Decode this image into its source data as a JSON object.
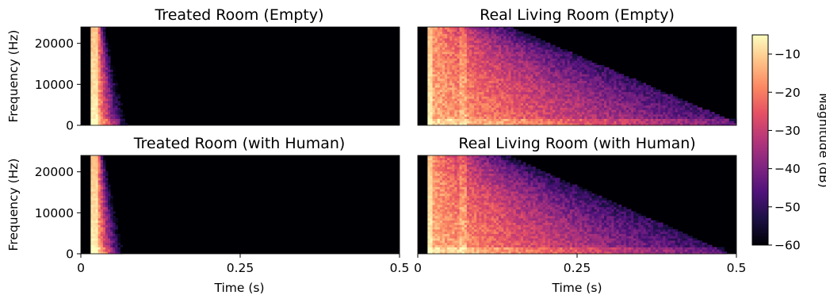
{
  "chart_data": [
    {
      "type": "heatmap",
      "title": "Treated Room (Empty)",
      "xlabel": "",
      "ylabel": "Frequency (Hz)",
      "xlim": [
        0,
        0.5
      ],
      "ylim": [
        0,
        24000
      ],
      "xticks": [],
      "yticks": [
        "0",
        "10000",
        "20000"
      ],
      "profile": {
        "onset_s": 0.015,
        "direct_width_s": 0.012,
        "decay_end_s": 0.06,
        "tail_level_db": -60,
        "noise_floor_db": -60,
        "second_reflection_s": 0.0
      }
    },
    {
      "type": "heatmap",
      "title": "Real Living Room (Empty)",
      "xlabel": "",
      "ylabel": "",
      "xlim": [
        0,
        0.5
      ],
      "ylim": [
        0,
        24000
      ],
      "xticks": [],
      "yticks": [],
      "profile": {
        "onset_s": 0.015,
        "direct_width_s": 0.01,
        "decay_end_s": 0.5,
        "tail_level_db": -48,
        "noise_floor_db": -60,
        "second_reflection_s": 0.055
      }
    },
    {
      "type": "heatmap",
      "title": "Treated Room (with Human)",
      "xlabel": "Time (s)",
      "ylabel": "Frequency (Hz)",
      "xlim": [
        0,
        0.5
      ],
      "ylim": [
        0,
        24000
      ],
      "xticks": [
        "0",
        "0.25",
        "0.5"
      ],
      "yticks": [
        "0",
        "10000",
        "20000"
      ],
      "profile": {
        "onset_s": 0.015,
        "direct_width_s": 0.012,
        "decay_end_s": 0.055,
        "tail_level_db": -60,
        "noise_floor_db": -60,
        "second_reflection_s": 0.0
      }
    },
    {
      "type": "heatmap",
      "title": "Real Living Room (with Human)",
      "xlabel": "Time (s)",
      "ylabel": "",
      "xlim": [
        0,
        0.5
      ],
      "ylim": [
        0,
        24000
      ],
      "xticks": [
        "0",
        "0.25",
        "0.5"
      ],
      "yticks": [],
      "profile": {
        "onset_s": 0.015,
        "direct_width_s": 0.01,
        "decay_end_s": 0.48,
        "tail_level_db": -50,
        "noise_floor_db": -60,
        "second_reflection_s": 0.055
      }
    }
  ],
  "colorbar": {
    "label": "Magnitude (dB)",
    "range": [
      -60,
      -5
    ],
    "ticks": [
      "−10",
      "−20",
      "−30",
      "−40",
      "−50",
      "−60"
    ],
    "colormap": "magma",
    "colors": [
      "#000004",
      "#1c1044",
      "#4f127b",
      "#812581",
      "#b5367a",
      "#e55064",
      "#fb8761",
      "#fec287",
      "#fcfdbf"
    ]
  }
}
